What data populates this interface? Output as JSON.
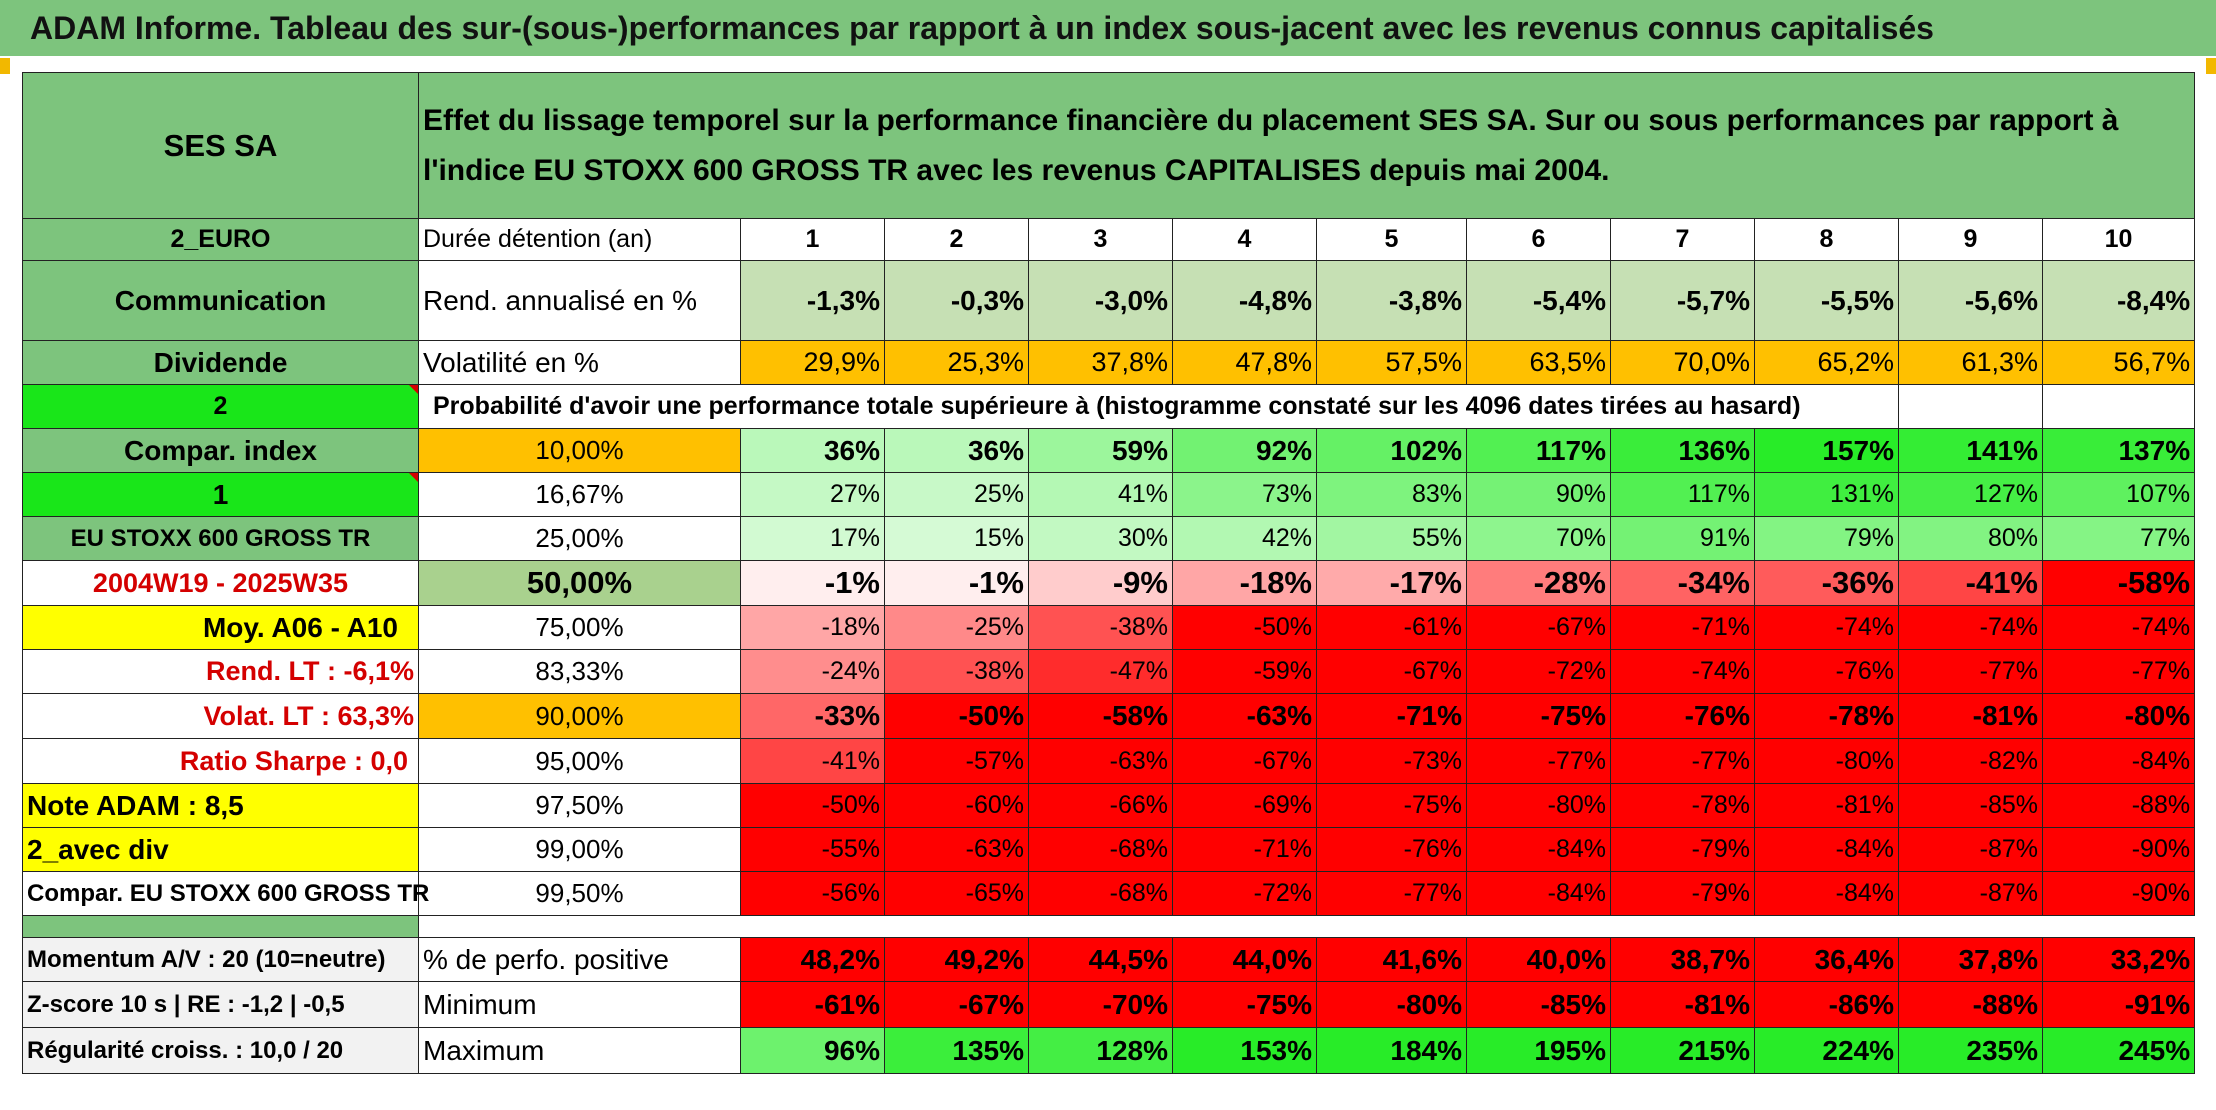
{
  "title": "ADAM Informe. Tableau des sur-(sous-)performances par rapport à un index sous-jacent avec les revenus connus capitalisés",
  "asset": "SES SA",
  "description": "Effet du lissage temporel sur la performance financière du placement SES SA. Sur ou sous performances par rapport à l'indice EU STOXX 600 GROSS TR avec les revenus CAPITALISES depuis mai 2004.",
  "side": {
    "currency": "2_EURO",
    "sector": "Communication",
    "dividend": "Dividende",
    "param1": "2",
    "compar_index": "Compar. index",
    "param2": "1",
    "index_name": "EU STOXX 600 GROSS TR",
    "period": "2004W19 - 2025W35",
    "moy": "Moy. A06 - A10",
    "rend_lt": "Rend. LT :    -6,1%",
    "volat_lt": "Volat. LT :    63,3%",
    "sharpe": "Ratio Sharpe :    0,0",
    "note": "Note ADAM : 8,5",
    "avec_div": "2_avec div",
    "compar_full": "Compar. EU STOXX 600 GROSS TR",
    "momentum": "Momentum A/V : 20 (10=neutre)",
    "zscore": "Z-score 10 s | RE : -1,2 | -0,5",
    "regularite": "Régularité croiss. : 10,0 / 20"
  },
  "header": {
    "duration_label": "Durée détention (an)",
    "years": [
      "1",
      "2",
      "3",
      "4",
      "5",
      "6",
      "7",
      "8",
      "9",
      "10"
    ],
    "rend_label": "Rend. annualisé en %",
    "rend": [
      "-1,3%",
      "-0,3%",
      "-3,0%",
      "-4,8%",
      "-3,8%",
      "-5,4%",
      "-5,7%",
      "-5,5%",
      "-5,6%",
      "-8,4%"
    ],
    "vol_label": "Volatilité en %",
    "vol": [
      "29,9%",
      "25,3%",
      "37,8%",
      "47,8%",
      "57,5%",
      "63,5%",
      "70,0%",
      "65,2%",
      "61,3%",
      "56,7%"
    ],
    "prob_label": "Probabilité d'avoir une performance totale supérieure à (histogramme constaté sur les 4096 dates tirées au hasard)"
  },
  "prob_rows": [
    {
      "p": "10,00%",
      "v": [
        "36%",
        "36%",
        "59%",
        "92%",
        "102%",
        "117%",
        "136%",
        "157%",
        "141%",
        "137%"
      ]
    },
    {
      "p": "16,67%",
      "v": [
        "27%",
        "25%",
        "41%",
        "73%",
        "83%",
        "90%",
        "117%",
        "131%",
        "127%",
        "107%"
      ]
    },
    {
      "p": "25,00%",
      "v": [
        "17%",
        "15%",
        "30%",
        "42%",
        "55%",
        "70%",
        "91%",
        "79%",
        "80%",
        "77%"
      ]
    },
    {
      "p": "50,00%",
      "v": [
        "-1%",
        "-1%",
        "-9%",
        "-18%",
        "-17%",
        "-28%",
        "-34%",
        "-36%",
        "-41%",
        "-58%"
      ]
    },
    {
      "p": "75,00%",
      "v": [
        "-18%",
        "-25%",
        "-38%",
        "-50%",
        "-61%",
        "-67%",
        "-71%",
        "-74%",
        "-74%",
        "-74%"
      ]
    },
    {
      "p": "83,33%",
      "v": [
        "-24%",
        "-38%",
        "-47%",
        "-59%",
        "-67%",
        "-72%",
        "-74%",
        "-76%",
        "-77%",
        "-77%"
      ]
    },
    {
      "p": "90,00%",
      "v": [
        "-33%",
        "-50%",
        "-58%",
        "-63%",
        "-71%",
        "-75%",
        "-76%",
        "-78%",
        "-81%",
        "-80%"
      ]
    },
    {
      "p": "95,00%",
      "v": [
        "-41%",
        "-57%",
        "-63%",
        "-67%",
        "-73%",
        "-77%",
        "-77%",
        "-80%",
        "-82%",
        "-84%"
      ]
    },
    {
      "p": "97,50%",
      "v": [
        "-50%",
        "-60%",
        "-66%",
        "-69%",
        "-75%",
        "-80%",
        "-78%",
        "-81%",
        "-85%",
        "-88%"
      ]
    },
    {
      "p": "99,00%",
      "v": [
        "-55%",
        "-63%",
        "-68%",
        "-71%",
        "-76%",
        "-84%",
        "-79%",
        "-84%",
        "-87%",
        "-90%"
      ]
    },
    {
      "p": "99,50%",
      "v": [
        "-56%",
        "-65%",
        "-68%",
        "-72%",
        "-77%",
        "-84%",
        "-79%",
        "-84%",
        "-87%",
        "-90%"
      ]
    }
  ],
  "stats": [
    {
      "label": "% de perfo. positive",
      "v": [
        "48,2%",
        "49,2%",
        "44,5%",
        "44,0%",
        "41,6%",
        "40,0%",
        "38,7%",
        "36,4%",
        "37,8%",
        "33,2%"
      ]
    },
    {
      "label": "Minimum",
      "v": [
        "-61%",
        "-67%",
        "-70%",
        "-75%",
        "-80%",
        "-85%",
        "-81%",
        "-86%",
        "-88%",
        "-91%"
      ]
    },
    {
      "label": "Maximum",
      "v": [
        "96%",
        "135%",
        "128%",
        "153%",
        "184%",
        "195%",
        "215%",
        "224%",
        "235%",
        "245%"
      ]
    }
  ],
  "colors": {
    "green_header": "#7dc47d",
    "bright_green": "#19e619",
    "orange": "#ffc000",
    "yellow": "#ffff00",
    "red": "#ff0000"
  }
}
